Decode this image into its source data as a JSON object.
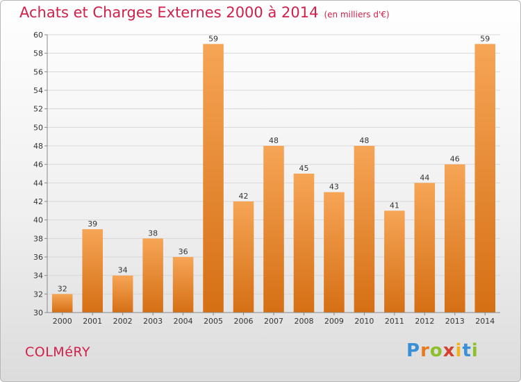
{
  "title": "Achats et Charges Externes 2000 à 2014",
  "subtitle": "(en milliers d'€)",
  "place": "COLMéRY",
  "logo": {
    "letters": [
      "P",
      "r",
      "o",
      "x",
      "i",
      "t",
      "i"
    ],
    "colors": [
      "#3a8fd6",
      "#e87a1e",
      "#8cbf2a",
      "#d6402e",
      "#f2b21a",
      "#3a8fd6",
      "#8cbf2a"
    ]
  },
  "colors": {
    "bar_top": "#f6a556",
    "bar_bottom": "#d56f14",
    "grid": "#d8d8d8",
    "title": "#d0204a"
  },
  "chart_data": {
    "type": "bar",
    "categories": [
      "2000",
      "2001",
      "2002",
      "2003",
      "2004",
      "2005",
      "2006",
      "2007",
      "2008",
      "2009",
      "2010",
      "2011",
      "2012",
      "2013",
      "2014"
    ],
    "values": [
      32,
      39,
      34,
      38,
      36,
      59,
      42,
      48,
      45,
      43,
      48,
      41,
      44,
      46,
      59
    ],
    "ylim": [
      30,
      60
    ],
    "yticks": [
      30,
      32,
      34,
      36,
      38,
      40,
      42,
      44,
      46,
      48,
      50,
      52,
      54,
      56,
      58,
      60
    ],
    "grid": true,
    "data_labels": true
  }
}
